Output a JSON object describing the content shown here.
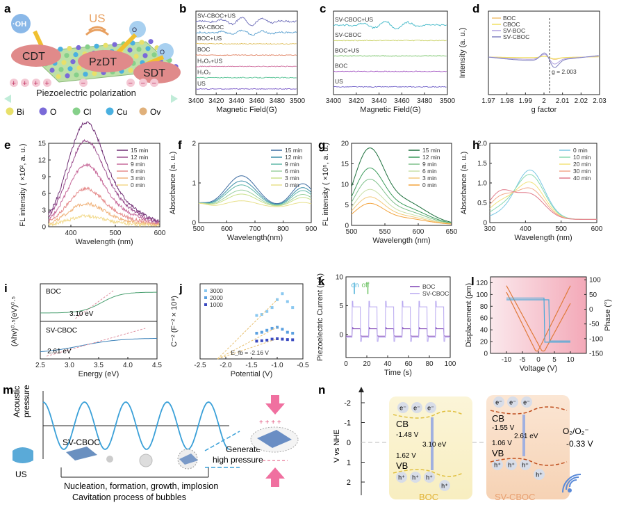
{
  "colors": {
    "time_ramp": [
      "#f2d98a",
      "#f0b27a",
      "#e58a8a",
      "#c76a9a",
      "#9c4f8f",
      "#6e2c73"
    ],
    "time_ramp_g": [
      "#f3a23a",
      "#f3c97a",
      "#c9e0a8",
      "#7ec08a",
      "#3a9a5a",
      "#1a6e3a"
    ],
    "time_ramp_f": [
      "#e8e08a",
      "#c8e08a",
      "#9ad0a0",
      "#5fb8a8",
      "#3a8ea8",
      "#3a6aa0"
    ],
    "time_ramp_h": [
      "#79c7e3",
      "#88d9b0",
      "#f2e27a",
      "#f3a98a",
      "#e07a8a"
    ],
    "boc": "#7b3fb3",
    "svcboc": "#9a8ee0",
    "accent_pink": "#e0507a",
    "disp": "#e07a3a",
    "phase": "#4aa8d8"
  },
  "panel_a": {
    "label": "a",
    "us": "US",
    "oh": "·OH",
    "o2a": "O",
    "o2b": "O",
    "cdt": "CDT",
    "pzdt": "PzDT",
    "sdt": "SDT",
    "plus": "+",
    "minus": "−",
    "piezo": "Piezoelectric polarization",
    "legend": [
      "Bi",
      "O",
      "Cl",
      "Cu",
      "Ov"
    ],
    "legend_colors": [
      "#e8e06a",
      "#7a6ad8",
      "#86d08a",
      "#4ab0e0",
      "#e0b07a"
    ]
  },
  "chart_data": [
    {
      "id": "b",
      "type": "line",
      "label": "b",
      "xlabel": "Magnetic Field(G)",
      "xlim": [
        3400,
        3500
      ],
      "xticks": [
        3400,
        3420,
        3440,
        3460,
        3480,
        3500
      ],
      "series": [
        {
          "name": "SV-CBOC+US",
          "color": "#6a6ab8",
          "amp": 10
        },
        {
          "name": "SV-CBOC",
          "color": "#5aa0d0",
          "amp": 6
        },
        {
          "name": "BOC+US",
          "color": "#e0c060",
          "amp": 1
        },
        {
          "name": "BOC",
          "color": "#e08060",
          "amp": 1
        },
        {
          "name": "H₂O₂+US",
          "color": "#d070a0",
          "amp": 1
        },
        {
          "name": "H₂O₂",
          "color": "#50c090",
          "amp": 1
        },
        {
          "name": "US",
          "color": "#7a5ac8",
          "amp": 1
        }
      ]
    },
    {
      "id": "c",
      "type": "line",
      "label": "c",
      "xlabel": "Magnetic Field(G)",
      "xlim": [
        3400,
        3500
      ],
      "xticks": [
        3400,
        3420,
        3440,
        3460,
        3480,
        3500
      ],
      "series": [
        {
          "name": "SV-CBOC+US",
          "color": "#40b8c8",
          "amp": 10
        },
        {
          "name": "SV-CBOC",
          "color": "#c8d060",
          "amp": 2
        },
        {
          "name": "BOC+US",
          "color": "#70c060",
          "amp": 2
        },
        {
          "name": "BOC",
          "color": "#a050c0",
          "amp": 2
        },
        {
          "name": "US",
          "color": "#7060c8",
          "amp": 2
        }
      ]
    },
    {
      "id": "d",
      "type": "line",
      "label": "d",
      "xlabel": "g factor",
      "ylabel": "Intensity (a. u.)",
      "xlim": [
        1.97,
        2.03
      ],
      "xticks": [
        1.97,
        1.98,
        1.99,
        2.0,
        2.01,
        2.02,
        2.03
      ],
      "xtick_labels": [
        "1.97",
        "1.98",
        "1.99",
        "2",
        "2.01",
        "2.02",
        "2.03"
      ],
      "annotation": "g = 2.003",
      "series": [
        {
          "name": "BOC",
          "color": "#f0c070"
        },
        {
          "name": "CBOC",
          "color": "#f0e060"
        },
        {
          "name": "SV-BOC",
          "color": "#b0a0e0"
        },
        {
          "name": "SV-CBOC",
          "color": "#8080c0"
        }
      ]
    },
    {
      "id": "e",
      "type": "line",
      "label": "e",
      "xlabel": "Wavelength (nm)",
      "ylabel": "FL intensity ( ×10², a. u.)",
      "xlim": [
        350,
        600
      ],
      "ylim": [
        0,
        15
      ],
      "xticks": [
        400,
        500,
        600
      ],
      "yticks": [
        0,
        3,
        6,
        9,
        12,
        15
      ],
      "peak_nm": 430,
      "series": [
        {
          "name": "15 min",
          "peak": 14.8
        },
        {
          "name": "12 min",
          "peak": 12.2
        },
        {
          "name": "9 min",
          "peak": 8.7
        },
        {
          "name": "6 min",
          "peak": 5.3
        },
        {
          "name": "3 min",
          "peak": 3.2
        },
        {
          "name": "0 min",
          "peak": 1.4
        }
      ]
    },
    {
      "id": "f",
      "type": "line",
      "label": "f",
      "xlabel": "Wavelength(nm)",
      "ylabel": "Absorbance (a. u.)",
      "xlim": [
        500,
        900
      ],
      "ylim": [
        0,
        2
      ],
      "xticks": [
        500,
        600,
        700,
        800,
        900
      ],
      "yticks": [
        0,
        1,
        2
      ],
      "series": [
        {
          "name": "15 min",
          "peak": 1.18
        },
        {
          "name": "12 min",
          "peak": 1.05
        },
        {
          "name": "9 min",
          "peak": 0.95
        },
        {
          "name": "6 min",
          "peak": 0.82
        },
        {
          "name": "3 min",
          "peak": 0.72
        },
        {
          "name": "0 min",
          "peak": 0.55
        }
      ]
    },
    {
      "id": "g",
      "type": "line",
      "label": "g",
      "xlabel": "Wavelength (nm)",
      "ylabel": "FL intensity ( ×10⁵, a. u.)",
      "xlim": [
        500,
        650
      ],
      "ylim": [
        0,
        20
      ],
      "xticks": [
        500,
        550,
        600,
        650
      ],
      "yticks": [
        0,
        5,
        10,
        15,
        20
      ],
      "peak_nm": 525,
      "series": [
        {
          "name": "15 min",
          "peak": 16.5
        },
        {
          "name": "12 min",
          "peak": 12.2
        },
        {
          "name": "9 min",
          "peak": 9.8
        },
        {
          "name": "6 min",
          "peak": 7.6
        },
        {
          "name": "3 min",
          "peak": 6.0
        },
        {
          "name": "0 min",
          "peak": 4.6
        }
      ]
    },
    {
      "id": "h",
      "type": "line",
      "label": "h",
      "xlabel": "Wavelength (nm)",
      "ylabel": "Absorbance (a. u.)",
      "xlim": [
        300,
        600
      ],
      "ylim": [
        0,
        2.0
      ],
      "xticks": [
        300,
        400,
        500,
        600
      ],
      "yticks": [
        0,
        0.5,
        1.0,
        1.5,
        2.0
      ],
      "ytick_labels": [
        "0",
        "0.5",
        "1.0",
        "1.5",
        "2.0"
      ],
      "series": [
        {
          "name": "0 min",
          "peak": 1.24
        },
        {
          "name": "10 min",
          "peak": 1.12
        },
        {
          "name": "20 min",
          "peak": 0.92
        },
        {
          "name": "30 min",
          "peak": 0.76
        },
        {
          "name": "40 min",
          "peak": 0.62
        }
      ]
    },
    {
      "id": "i",
      "type": "line",
      "label": "i",
      "xlabel": "Energy (eV)",
      "ylabel": "(Ahv)⁰·⁵(eV)⁰·⁵",
      "xlim": [
        2.5,
        4.5
      ],
      "xticks": [
        2.5,
        3.0,
        3.5,
        4.0,
        4.5
      ],
      "xtick_labels": [
        "2.5",
        "3.0",
        "3.5",
        "4.0",
        "4.5"
      ],
      "texts": {
        "boc": "BOC",
        "boc_gap": "3.10 eV",
        "sv": "SV-CBOC",
        "sv_gap": "2.61 eV"
      }
    },
    {
      "id": "j",
      "type": "scatter",
      "label": "j",
      "xlabel": "Potential (V)",
      "ylabel": "C⁻² (F⁻² × 10⁹)",
      "xlim": [
        -2.5,
        -0.5
      ],
      "xticks": [
        -2.5,
        -2.0,
        -1.5,
        -1.0,
        -0.5
      ],
      "xtick_labels": [
        "-2.5",
        "-2.0",
        "-1.5",
        "-1.0",
        "-0.5"
      ],
      "annotation": "E_fb = -2.16 V",
      "series": [
        {
          "name": "3000",
          "color": "#8ac8f0",
          "values": [
            2.2,
            2.25,
            2.4,
            2.6,
            3.0,
            3.3,
            2.9,
            2.6
          ]
        },
        {
          "name": "2000",
          "color": "#5aa0e0",
          "values": [
            1.3,
            1.35,
            1.45,
            1.55,
            1.6,
            1.5,
            1.35,
            1.3
          ]
        },
        {
          "name": "1000",
          "color": "#3a4ac0",
          "values": [
            0.9,
            0.92,
            0.95,
            1.0,
            1.02,
            1.0,
            0.98,
            0.97
          ]
        }
      ],
      "x": [
        -1.4,
        -1.3,
        -1.2,
        -1.1,
        -1.0,
        -0.9,
        -0.8,
        -0.7
      ]
    },
    {
      "id": "k",
      "type": "line",
      "label": "k",
      "xlabel": "Time (s)",
      "ylabel": "Piezoelectric Current (μA)",
      "xlim": [
        0,
        100
      ],
      "ylim": [
        -4,
        10
      ],
      "xticks": [
        0,
        20,
        40,
        60,
        80,
        100
      ],
      "yticks": [
        0,
        5,
        10
      ],
      "on_label": "on",
      "off_label": "off",
      "series": [
        {
          "name": "BOC",
          "color": "#7b3fb3",
          "on": 1.0
        },
        {
          "name": "SV-CBOC",
          "color": "#b8a8f0",
          "on": 4.8
        }
      ]
    },
    {
      "id": "l",
      "type": "line",
      "label": "l",
      "xlabel": "Voltage (V)",
      "ylabel": "Displacement (pm)",
      "y2label": "Phase (°)",
      "xlim": [
        -15,
        15
      ],
      "ylim": [
        0,
        130
      ],
      "y2lim": [
        -150,
        110
      ],
      "xticks": [
        -10,
        -5,
        0,
        5,
        10
      ],
      "yticks": [
        0,
        20,
        40,
        60,
        80,
        100,
        120
      ],
      "y2ticks": [
        -150,
        -100,
        -50,
        0,
        50,
        100
      ]
    }
  ],
  "panel_m": {
    "label": "m",
    "ylabel_1": "Acoustic",
    "ylabel_2": "pressure",
    "svcboc": "SV-CBOC",
    "us": "US",
    "generate_1": "Generate",
    "generate_2": "high pressure",
    "caption_1": "Nucleation, formation, growth, implosion",
    "caption_2": "Cavitation process of bubbles",
    "plus": "+ + + +"
  },
  "panel_n": {
    "label": "n",
    "ylabel": "V vs NHE",
    "yticks": [
      "-2",
      "-1",
      "0",
      "1",
      "2"
    ],
    "boc": {
      "name": "BOC",
      "cb": "CB",
      "cb_v": "-1.48 V",
      "vb": "VB",
      "vb_v": "1.62 V",
      "gap": "3.10 eV"
    },
    "sv": {
      "name": "SV-CBOC",
      "cb": "CB",
      "cb_v": "-1.55 V",
      "vb": "VB",
      "vb_v": "1.06 V",
      "gap": "2.61 eV"
    },
    "redox_1": "O₂/O₂⁻",
    "redox_2": "-0.33 V",
    "e": "e⁻",
    "h": "h⁺"
  }
}
